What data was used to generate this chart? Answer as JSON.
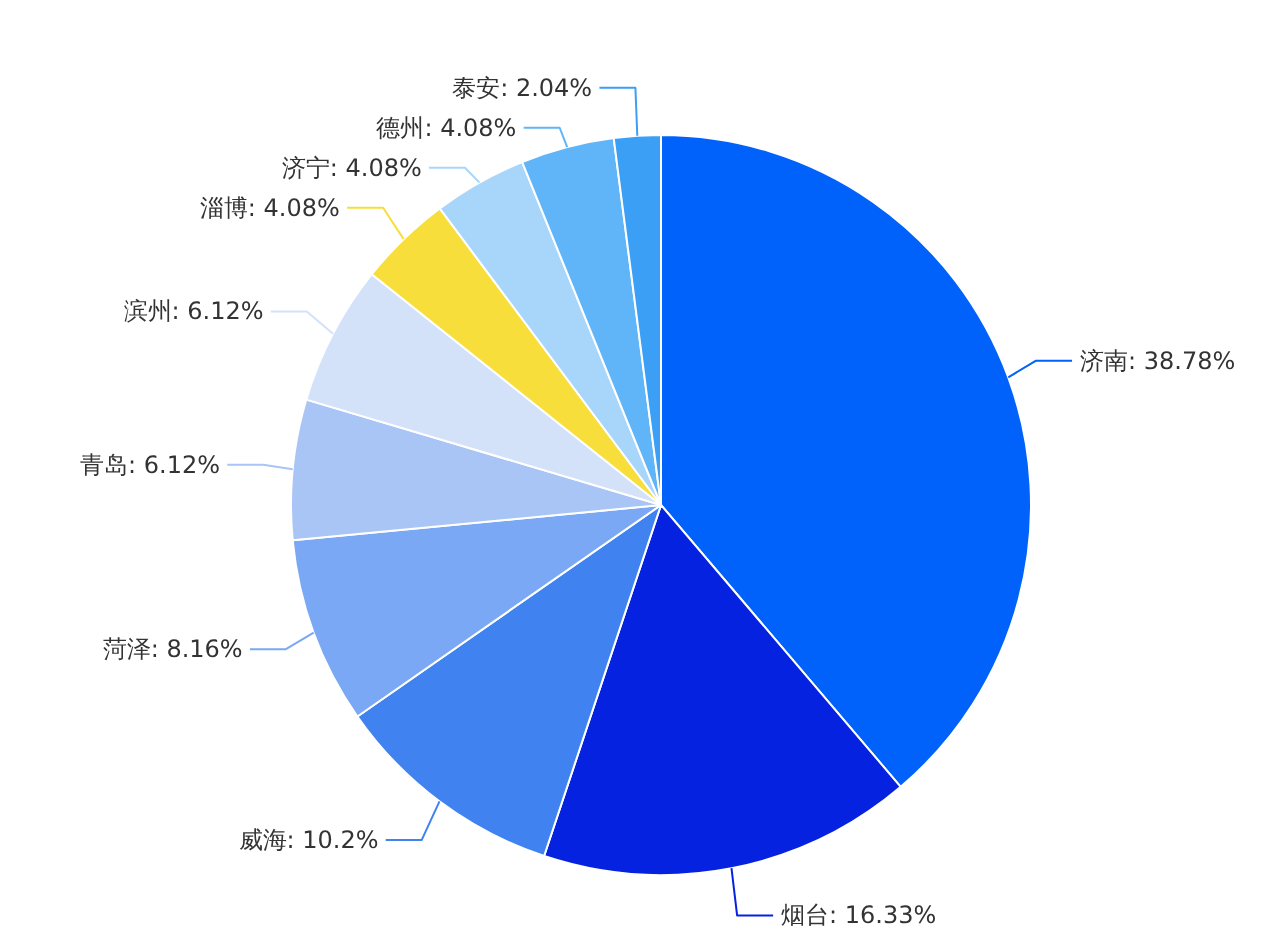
{
  "chart_data": {
    "type": "pie",
    "categories": [
      "济南",
      "烟台",
      "威海",
      "菏泽",
      "青岛",
      "滨州",
      "淄博",
      "济宁",
      "德州",
      "泰安"
    ],
    "values": [
      38.78,
      16.33,
      10.2,
      8.16,
      6.12,
      6.12,
      4.08,
      4.08,
      4.08,
      2.04
    ],
    "colors": [
      "#0062fa",
      "#0522e0",
      "#3f82f0",
      "#7aa8f4",
      "#a9c5f6",
      "#d3e2f9",
      "#f8de3a",
      "#a8d6fa",
      "#5fb5f8",
      "#3b9ff5"
    ],
    "value_labels": [
      ": 38.78%",
      ": 16.33%",
      ": 10.2%",
      ": 8.16%",
      ": 6.12%",
      ": 6.12%",
      ": 4.08%",
      ": 4.08%",
      ": 4.08%",
      ": 2.04%"
    ]
  }
}
